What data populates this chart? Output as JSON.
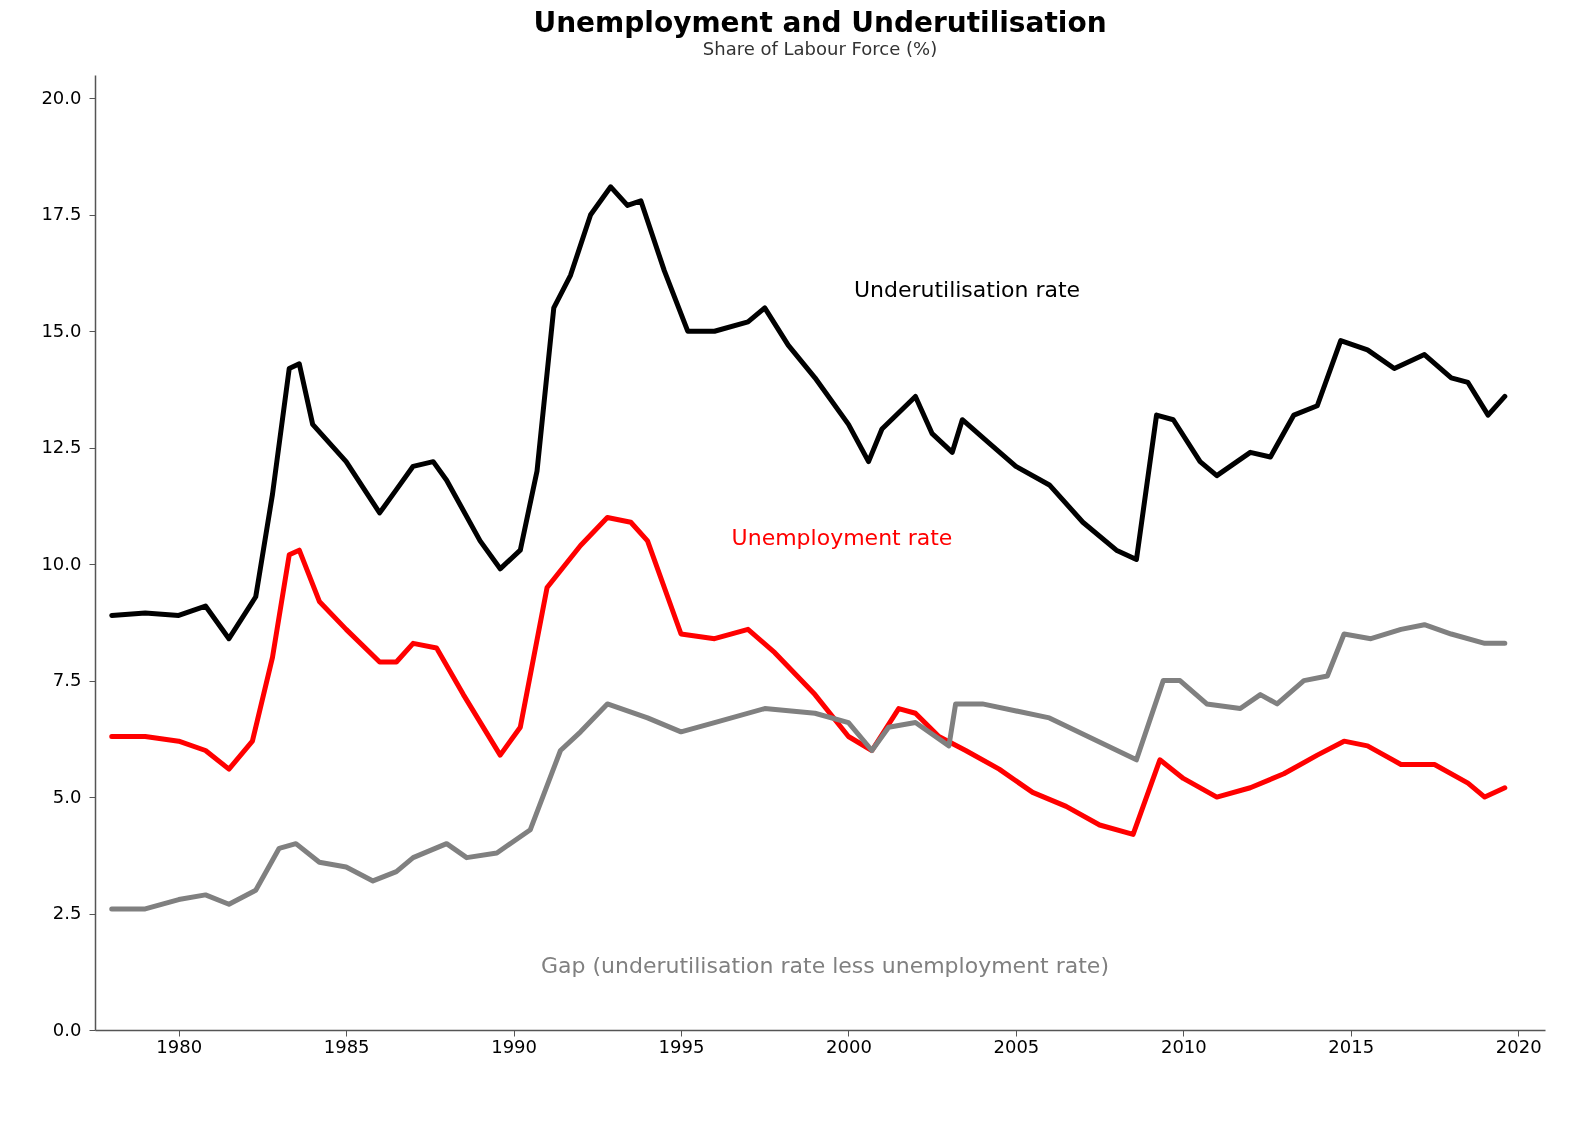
{
  "chart_data": {
    "type": "line",
    "title": "Unemployment and Underutilisation",
    "subtitle": "Share of Labour Force (%)",
    "xlim": [
      1977.5,
      2020.8
    ],
    "xticks": [
      1980,
      1985,
      1990,
      1995,
      2000,
      2005,
      2010,
      2015,
      2020
    ],
    "ylim": [
      0,
      20.5
    ],
    "yticks": [
      {
        "value": 0,
        "label": "0.0"
      },
      2.5,
      {
        "value": 5,
        "label": "5.0"
      },
      7.5,
      {
        "value": 10,
        "label": "10.0"
      },
      12.5,
      {
        "value": 15,
        "label": "15.0"
      },
      17.5,
      {
        "value": 20,
        "label": "20.0"
      }
    ],
    "grid": false,
    "legend": false,
    "line_style": "solid",
    "marker": "none",
    "series": [
      {
        "name": "Underutilisation rate",
        "color": "#000000",
        "x": [
          1978.0,
          1979,
          1980,
          1980.8,
          1981.5,
          1982.3,
          1982.8,
          1983.3,
          1983.6,
          1984.0,
          1985,
          1986,
          1986.5,
          1987,
          1987.6,
          1988,
          1989,
          1989.6,
          1990.2,
          1990.7,
          1991.2,
          1991.7,
          1992.3,
          1992.9,
          1993.4,
          1993.8,
          1994.5,
          1995.2,
          1996,
          1997,
          1997.5,
          1998.2,
          1999,
          2000,
          2000.6,
          2001,
          2002,
          2002.5,
          2003.1,
          2003.4,
          2004.2,
          2005,
          2006,
          2007,
          2008,
          2008.6,
          2009.2,
          2009.7,
          2010.5,
          2011,
          2012,
          2012.6,
          2013.3,
          2014,
          2014.7,
          2015.5,
          2016.3,
          2017.2,
          2018,
          2018.5,
          2019.1,
          2019.6
        ],
        "values": [
          8.9,
          8.95,
          8.9,
          9.1,
          8.4,
          9.3,
          11.5,
          14.2,
          14.3,
          13.0,
          12.2,
          11.1,
          11.6,
          12.1,
          12.2,
          11.8,
          10.5,
          9.9,
          10.3,
          12.0,
          15.5,
          16.2,
          17.5,
          18.1,
          17.7,
          17.8,
          16.3,
          15.0,
          15.0,
          15.2,
          15.5,
          14.7,
          14.0,
          13.0,
          12.2,
          12.9,
          13.6,
          12.8,
          12.4,
          13.1,
          12.6,
          12.1,
          11.7,
          10.9,
          10.3,
          10.1,
          13.2,
          13.1,
          12.2,
          11.9,
          12.4,
          12.3,
          13.2,
          13.4,
          14.8,
          14.6,
          14.2,
          14.5,
          14.0,
          13.9,
          13.2,
          13.6
        ]
      },
      {
        "name": "Unemployment rate",
        "color": "#ff0000",
        "x": [
          1978,
          1979,
          1980,
          1980.8,
          1981.5,
          1982.2,
          1982.8,
          1983.3,
          1983.6,
          1984.2,
          1985,
          1986,
          1986.5,
          1987,
          1987.7,
          1988.5,
          1989.6,
          1990.2,
          1991,
          1992,
          1992.8,
          1993.5,
          1994,
          1995,
          1996,
          1997,
          1997.8,
          1999,
          2000,
          2000.7,
          2001.5,
          2002,
          2002.7,
          2003.5,
          2004.5,
          2005.5,
          2006.5,
          2007.5,
          2008.5,
          2009.3,
          2010,
          2011,
          2012,
          2013,
          2014,
          2014.8,
          2015.5,
          2016.5,
          2017.5,
          2018.5,
          2019,
          2019.6
        ],
        "values": [
          6.3,
          6.3,
          6.2,
          6.0,
          5.6,
          6.2,
          8.0,
          10.2,
          10.3,
          9.2,
          8.6,
          7.9,
          7.9,
          8.3,
          8.2,
          7.2,
          5.9,
          6.5,
          9.5,
          10.4,
          11.0,
          10.9,
          10.5,
          8.5,
          8.4,
          8.6,
          8.1,
          7.2,
          6.3,
          6.0,
          6.9,
          6.8,
          6.3,
          6.0,
          5.6,
          5.1,
          4.8,
          4.4,
          4.2,
          5.8,
          5.4,
          5.0,
          5.2,
          5.5,
          5.9,
          6.2,
          6.1,
          5.7,
          5.7,
          5.3,
          5.0,
          5.2
        ]
      },
      {
        "name": "Gap (underutilisation rate less unemployment rate)",
        "color": "#808080",
        "x": [
          1978,
          1979,
          1980,
          1980.8,
          1981.5,
          1982.3,
          1983,
          1983.5,
          1984.2,
          1985,
          1985.8,
          1986.5,
          1987,
          1988,
          1988.6,
          1989.5,
          1990.5,
          1991.4,
          1992,
          1992.8,
          1994,
          1995,
          1996,
          1997.5,
          1999,
          2000,
          2000.7,
          2001.2,
          2002,
          2003,
          2003.2,
          2004,
          2006,
          2008.6,
          2009.4,
          2009.9,
          2010.7,
          2011.7,
          2012.3,
          2012.8,
          2013.6,
          2014.3,
          2014.8,
          2015.6,
          2016.5,
          2017.2,
          2018,
          2019,
          2019.6
        ],
        "values": [
          2.6,
          2.6,
          2.8,
          2.9,
          2.7,
          3.0,
          3.9,
          4.0,
          3.6,
          3.5,
          3.2,
          3.4,
          3.7,
          4.0,
          3.7,
          3.8,
          4.3,
          6.0,
          6.4,
          7.0,
          6.7,
          6.4,
          6.6,
          6.9,
          6.8,
          6.6,
          6.0,
          6.5,
          6.6,
          6.1,
          7.0,
          7.0,
          6.7,
          5.8,
          7.5,
          7.5,
          7.0,
          6.9,
          7.2,
          7.0,
          7.5,
          7.6,
          8.5,
          8.4,
          8.6,
          8.7,
          8.5,
          8.3,
          8.3
        ]
      }
    ]
  }
}
